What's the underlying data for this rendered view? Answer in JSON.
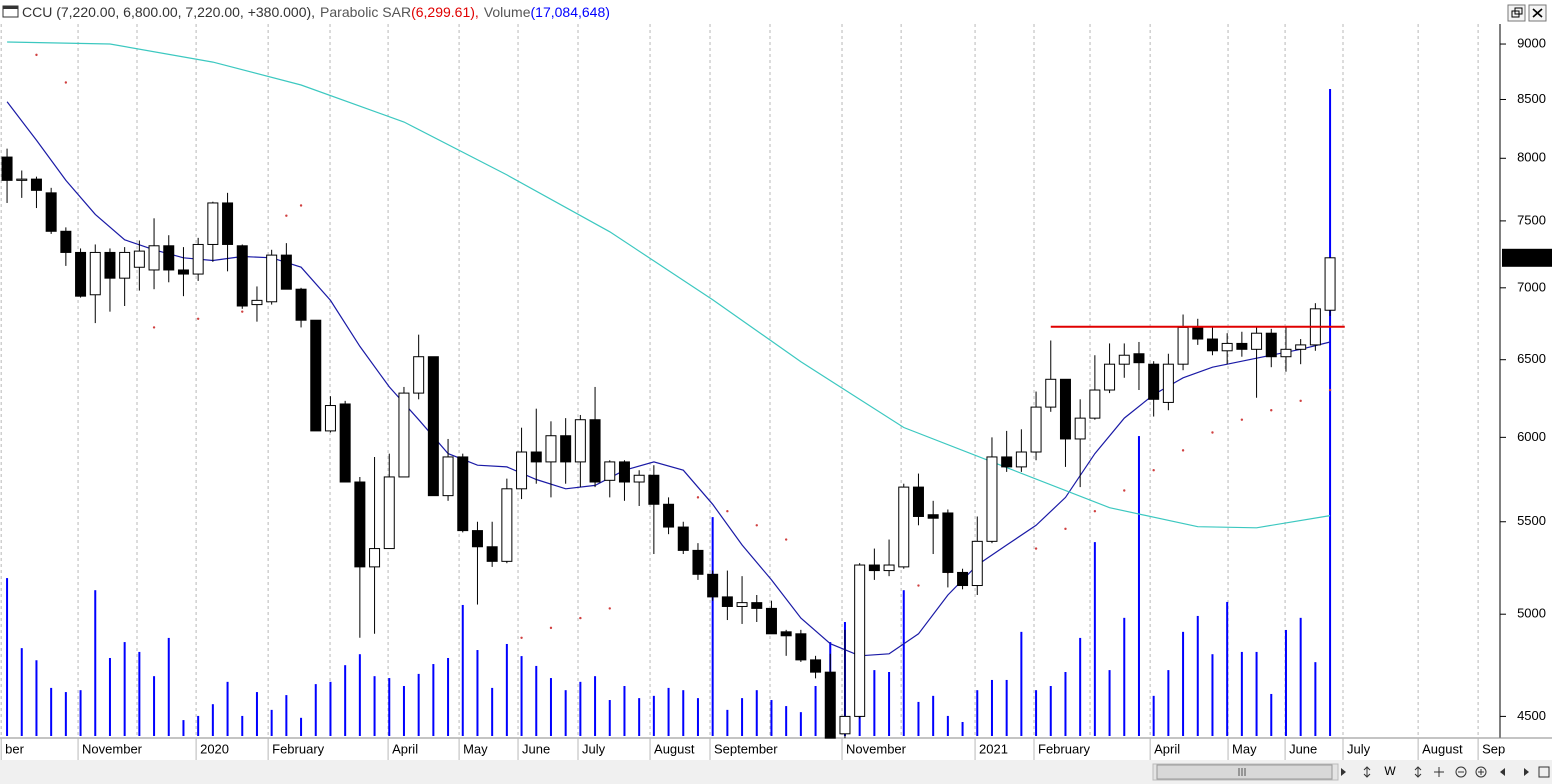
{
  "chart_data": {
    "type": "candlestick",
    "header": [
      {
        "text": "CCU (7,220.00, 6,800.00, 7,220.00, +380.000),",
        "color": "#333333"
      },
      {
        "text": "Parabolic SAR",
        "color": "#555555"
      },
      {
        "text": "(6,299.61),",
        "color": "#e00000"
      },
      {
        "text": "Volume",
        "color": "#555555"
      },
      {
        "text": "(17,084,648)",
        "color": "#0000ff"
      }
    ],
    "log_scale": true,
    "grid": true,
    "xlim": [
      -0.48,
      101.56
    ],
    "ylim": [
      4410,
      9150
    ],
    "yticks": [
      4500,
      5000,
      5500,
      6000,
      6500,
      7000,
      7500,
      8000,
      8500,
      9000
    ],
    "xticks": [
      {
        "value": -0.4,
        "label": "ber"
      },
      {
        "value": 4.83,
        "label": "November"
      },
      {
        "value": 12.86,
        "label": "2020"
      },
      {
        "value": 17.76,
        "label": "February"
      },
      {
        "value": 25.92,
        "label": "April"
      },
      {
        "value": 30.75,
        "label": "May"
      },
      {
        "value": 34.76,
        "label": "June"
      },
      {
        "value": 38.84,
        "label": "July"
      },
      {
        "value": 43.74,
        "label": "August"
      },
      {
        "value": 47.82,
        "label": "September"
      },
      {
        "value": 56.8,
        "label": "November"
      },
      {
        "value": 65.85,
        "label": "2021"
      },
      {
        "value": 69.86,
        "label": "February"
      },
      {
        "value": 77.76,
        "label": "April"
      },
      {
        "value": 83.06,
        "label": "May"
      },
      {
        "value": 86.94,
        "label": "June"
      },
      {
        "value": 90.88,
        "label": "July"
      },
      {
        "value": 95.99,
        "label": "August"
      },
      {
        "value": 100.07,
        "label": "Sep"
      }
    ],
    "xgrid_minor": [
      8.84,
      21.97,
      51.9,
      60.82,
      73.67
    ],
    "color_up": "#ffffff",
    "color_down": "#000000",
    "open": [
      8010,
      7820,
      7830,
      7720,
      7420,
      7260,
      6950,
      7260,
      7070,
      7150,
      7130,
      7310,
      7130,
      7100,
      7320,
      7640,
      7310,
      6880,
      6900,
      7240,
      6990,
      6770,
      6040,
      6210,
      5730,
      5250,
      5350,
      5760,
      6280,
      6520,
      5650,
      5880,
      5450,
      5360,
      5280,
      5690,
      5910,
      5850,
      6010,
      5850,
      6110,
      5740,
      5850,
      5730,
      5770,
      5600,
      5470,
      5340,
      5210,
      5090,
      5040,
      5060,
      5030,
      4910,
      4900,
      4770,
      4710,
      4420,
      4500,
      5260,
      5230,
      5250,
      5700,
      5540,
      5550,
      5220,
      5150,
      5390,
      5880,
      5820,
      5910,
      6190,
      6370,
      5990,
      6120,
      6300,
      6470,
      6540,
      6470,
      6220,
      6470,
      6720,
      6640,
      6560,
      6610,
      6570,
      6680,
      6520,
      6570,
      6600,
      6840
    ],
    "high": [
      8080,
      7900,
      7850,
      7760,
      7450,
      7290,
      7320,
      7290,
      7300,
      7350,
      7520,
      7390,
      7300,
      7370,
      7650,
      7720,
      7320,
      7010,
      7280,
      7330,
      7000,
      6770,
      6260,
      6230,
      5760,
      5880,
      5900,
      6320,
      6670,
      6520,
      5990,
      5900,
      5500,
      5500,
      5750,
      6060,
      6180,
      6100,
      6120,
      6140,
      6320,
      5860,
      5860,
      5800,
      5830,
      5640,
      5500,
      5380,
      5230,
      5230,
      5200,
      5100,
      5070,
      4920,
      4920,
      4790,
      4800,
      4920,
      5270,
      5350,
      5400,
      5720,
      5780,
      5620,
      5570,
      5240,
      5530,
      6000,
      6040,
      6050,
      6290,
      6630,
      6370,
      6240,
      6530,
      6610,
      6610,
      6620,
      6490,
      6540,
      6810,
      6780,
      6730,
      6680,
      6690,
      6730,
      6710,
      6720,
      6640,
      6890,
      7220
    ],
    "low": [
      7640,
      7680,
      7600,
      7400,
      7160,
      6930,
      6750,
      6830,
      6870,
      6980,
      6990,
      7040,
      6940,
      7050,
      7190,
      7120,
      6850,
      6760,
      6880,
      6990,
      6720,
      6040,
      6030,
      5730,
      4880,
      4900,
      5350,
      5760,
      6240,
      5650,
      5620,
      5440,
      5050,
      5250,
      5270,
      5630,
      5720,
      5640,
      5720,
      5700,
      5700,
      5640,
      5620,
      5590,
      5320,
      5430,
      5320,
      5180,
      5070,
      4970,
      4950,
      4960,
      4900,
      4790,
      4760,
      4680,
      4400,
      4400,
      4490,
      5180,
      5200,
      5240,
      5480,
      5320,
      5140,
      5130,
      5100,
      5380,
      5790,
      5790,
      5860,
      6160,
      5820,
      5700,
      6110,
      6280,
      6380,
      6300,
      6130,
      6170,
      6430,
      6600,
      6530,
      6470,
      6520,
      6250,
      6450,
      6420,
      6470,
      6560,
      6800
    ],
    "close": [
      7820,
      7830,
      7740,
      7420,
      7260,
      6940,
      7260,
      7070,
      7260,
      7270,
      7310,
      7130,
      7100,
      7320,
      7640,
      7320,
      6870,
      6910,
      7240,
      6990,
      6770,
      6040,
      6200,
      5730,
      5250,
      5350,
      5760,
      6280,
      6520,
      5650,
      5880,
      5450,
      5360,
      5280,
      5690,
      5910,
      5850,
      6010,
      5850,
      6110,
      5730,
      5850,
      5730,
      5770,
      5600,
      5470,
      5340,
      5210,
      5090,
      5040,
      5060,
      5030,
      4900,
      4890,
      4770,
      4710,
      4400,
      4500,
      5260,
      5230,
      5260,
      5700,
      5530,
      5520,
      5220,
      5150,
      5390,
      5880,
      5820,
      5910,
      6190,
      6370,
      5990,
      6120,
      6300,
      6470,
      6530,
      6480,
      6240,
      6470,
      6720,
      6640,
      6560,
      6610,
      6570,
      6680,
      6520,
      6570,
      6600,
      6850,
      7220
    ],
    "volume": {
      "color": "#0000ff",
      "values": [
        4170000,
        2320000,
        2000000,
        1270000,
        1160000,
        1210000,
        3850000,
        2060000,
        2480000,
        2220000,
        1580000,
        2590000,
        420000,
        530000,
        840000,
        1430000,
        530000,
        1160000,
        690000,
        1080000,
        480000,
        1370000,
        1430000,
        1870000,
        2160000,
        1580000,
        1530000,
        1320000,
        1640000,
        1900000,
        2060000,
        3460000,
        2270000,
        1270000,
        2430000,
        2110000,
        1850000,
        1530000,
        1210000,
        1430000,
        1580000,
        950000,
        1320000,
        1000000,
        1060000,
        1270000,
        1210000,
        1000000,
        5780000,
        690000,
        1000000,
        1210000,
        950000,
        790000,
        630000,
        1320000,
        2480000,
        3010000,
        2530000,
        1740000,
        1690000,
        3850000,
        900000,
        1060000,
        530000,
        370000,
        1210000,
        1480000,
        1480000,
        2750000,
        1210000,
        1320000,
        1690000,
        2590000,
        5120000,
        1740000,
        3120000,
        7920000,
        1060000,
        1740000,
        2750000,
        3170000,
        2160000,
        3540000,
        2220000,
        2220000,
        1110000,
        2800000,
        3120000,
        1950000,
        17084648
      ]
    },
    "lines": [
      {
        "color": "#1a1aa6",
        "x": [
          0,
          2,
          4,
          6,
          8,
          10,
          12,
          14,
          16,
          18,
          20,
          22,
          24,
          26,
          28,
          30,
          32,
          34,
          36,
          38,
          40,
          42,
          44,
          46,
          48,
          50,
          52,
          54,
          56,
          58,
          60,
          62,
          64,
          66,
          68,
          70,
          72,
          74,
          76,
          78,
          80,
          82,
          84,
          86,
          88,
          90
        ],
        "values": [
          8480,
          8150,
          7820,
          7550,
          7355,
          7280,
          7220,
          7200,
          7230,
          7220,
          7150,
          6910,
          6590,
          6320,
          6110,
          5900,
          5830,
          5820,
          5745,
          5690,
          5710,
          5800,
          5850,
          5800,
          5600,
          5370,
          5180,
          4980,
          4850,
          4790,
          4800,
          4900,
          5100,
          5260,
          5370,
          5480,
          5640,
          5900,
          6120,
          6270,
          6380,
          6450,
          6490,
          6530,
          6570,
          6620
        ]
      },
      {
        "color": "#3cc8c0",
        "x": [
          0,
          7,
          14,
          20,
          27,
          34,
          41,
          48,
          54,
          61,
          68,
          75,
          81,
          85,
          90
        ],
        "values": [
          9019,
          9000,
          8834,
          8628,
          8305,
          7864,
          7416,
          6915,
          6486,
          6061,
          5816,
          5580,
          5472,
          5466,
          5535
        ]
      }
    ],
    "sar": {
      "color": "#d04040",
      "x": [
        2,
        4,
        10,
        13,
        16,
        19,
        20,
        35,
        37,
        39,
        41,
        47,
        49,
        51,
        53,
        62,
        64,
        70,
        72,
        74,
        76,
        78,
        80,
        82,
        84,
        86,
        88,
        90
      ],
      "values": [
        8900,
        8650,
        6720,
        6780,
        6830,
        7540,
        7620,
        4880,
        4930,
        4980,
        5030,
        5640,
        5560,
        5480,
        5400,
        5150,
        5220,
        5350,
        5460,
        5560,
        5680,
        5800,
        5920,
        6030,
        6110,
        6170,
        6230,
        6299.61
      ]
    },
    "resistance": {
      "value": 6725,
      "x": [
        71,
        91
      ],
      "color": "#e00000"
    },
    "last_price_label": "7220.0"
  },
  "ui": {
    "toolbar_label": "W"
  }
}
